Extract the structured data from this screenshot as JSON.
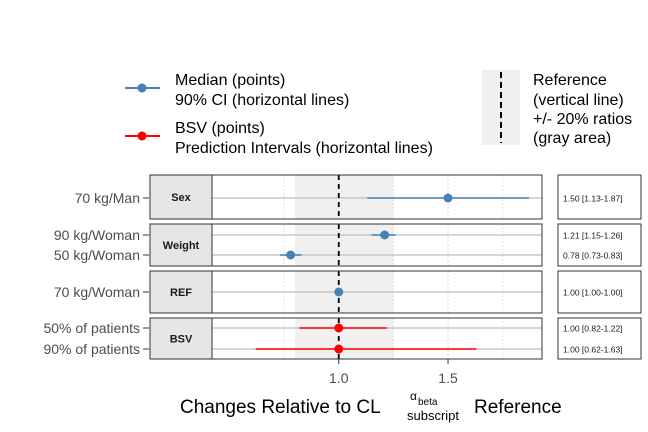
{
  "chart_data": {
    "type": "scatter",
    "subtype": "forest-plot",
    "x_axis": {
      "label_prefix": "Changes Relative to CL",
      "label_superscript_base": "α",
      "label_superscript_sub": "beta",
      "label_subscript": "subscript",
      "label_suffix": "Reference",
      "ticks": [
        "1.0",
        "1.5"
      ],
      "tick_values": [
        1.0,
        1.5
      ],
      "minor_gridlines": [
        0.75,
        1.25,
        1.75
      ],
      "xlim": [
        0.42,
        1.93
      ]
    },
    "reference": {
      "line": 1.0,
      "band": [
        0.8,
        1.25
      ]
    },
    "legend": {
      "position": "top",
      "median_label_1": "Median (points)",
      "median_label_2": "90% CI (horizontal lines)",
      "bsv_label_1": "BSV (points)",
      "bsv_label_2": "Prediction Intervals (horizontal lines)",
      "ref_label_1": "Reference",
      "ref_label_2": "(vertical line)",
      "ref_label_3": "+/- 20% ratios",
      "ref_label_4": "(gray area)"
    },
    "panels": [
      {
        "strip": "Sex",
        "rows": [
          {
            "label": "70 kg/Man",
            "median": 1.5,
            "lo": 1.13,
            "hi": 1.87,
            "series": "median",
            "table": "1.50 [1.13-1.87]"
          }
        ]
      },
      {
        "strip": "Weight",
        "rows": [
          {
            "label": "90 kg/Woman",
            "median": 1.21,
            "lo": 1.15,
            "hi": 1.26,
            "series": "median",
            "table": "1.21 [1.15-1.26]"
          },
          {
            "label": "50 kg/Woman",
            "median": 0.78,
            "lo": 0.73,
            "hi": 0.83,
            "series": "median",
            "table": "0.78 [0.73-0.83]"
          }
        ]
      },
      {
        "strip": "REF",
        "rows": [
          {
            "label": "70 kg/Woman",
            "median": 1.0,
            "lo": 1.0,
            "hi": 1.0,
            "series": "median",
            "table": "1.00 [1.00-1.00]"
          }
        ]
      },
      {
        "strip": "BSV",
        "rows": [
          {
            "label": "50% of patients",
            "median": 1.0,
            "lo": 0.82,
            "hi": 1.22,
            "series": "bsv",
            "table": "1.00 [0.82-1.22]"
          },
          {
            "label": "90% of patients",
            "median": 1.0,
            "lo": 0.62,
            "hi": 1.63,
            "series": "bsv",
            "table": "1.00 [0.62-1.63]"
          }
        ]
      }
    ],
    "colors": {
      "median": "#4682B4",
      "bsv": "#FF0000",
      "band": "#F0F0F0",
      "strip": "#E6E6E6"
    }
  }
}
